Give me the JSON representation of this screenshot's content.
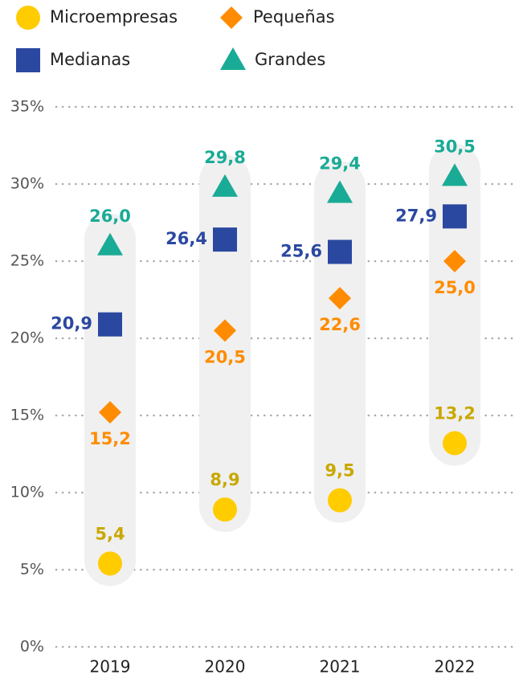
{
  "chart_data": {
    "type": "dot",
    "categories": [
      "2019",
      "2020",
      "2021",
      "2022"
    ],
    "series": [
      {
        "name": "Microempresas",
        "color": "#ffcc00",
        "label_color": "#c9a800",
        "marker": "circle",
        "values": [
          5.4,
          8.9,
          9.5,
          13.2
        ],
        "value_labels": [
          "5,4",
          "8,9",
          "9,5",
          "13,2"
        ]
      },
      {
        "name": "Pequeñas",
        "color": "#ff8c00",
        "label_color": "#ff8c00",
        "marker": "diamond",
        "values": [
          15.2,
          20.5,
          22.6,
          25.0
        ],
        "value_labels": [
          "15,2",
          "20,5",
          "22,6",
          "25,0"
        ]
      },
      {
        "name": "Medianas",
        "color": "#2b48a0",
        "label_color": "#2b48a0",
        "marker": "square",
        "values": [
          20.9,
          26.4,
          25.6,
          27.9
        ],
        "value_labels": [
          "20,9",
          "26,4",
          "25,6",
          "27,9"
        ]
      },
      {
        "name": "Grandes",
        "color": "#1aab96",
        "label_color": "#1aab96",
        "marker": "triangle",
        "values": [
          26.0,
          29.8,
          29.4,
          30.5
        ],
        "value_labels": [
          "26,0",
          "29,8",
          "29,4",
          "30,5"
        ]
      }
    ],
    "ylim": [
      0,
      35
    ],
    "yticks": [
      {
        "value": 0,
        "label": "0%"
      },
      {
        "value": 5,
        "label": "5%"
      },
      {
        "value": 10,
        "label": "10%"
      },
      {
        "value": 15,
        "label": "15%"
      },
      {
        "value": 20,
        "label": "20%"
      },
      {
        "value": 25,
        "label": "25%"
      },
      {
        "value": 30,
        "label": "30%"
      },
      {
        "value": 35,
        "label": "35%"
      }
    ],
    "grid": true
  }
}
